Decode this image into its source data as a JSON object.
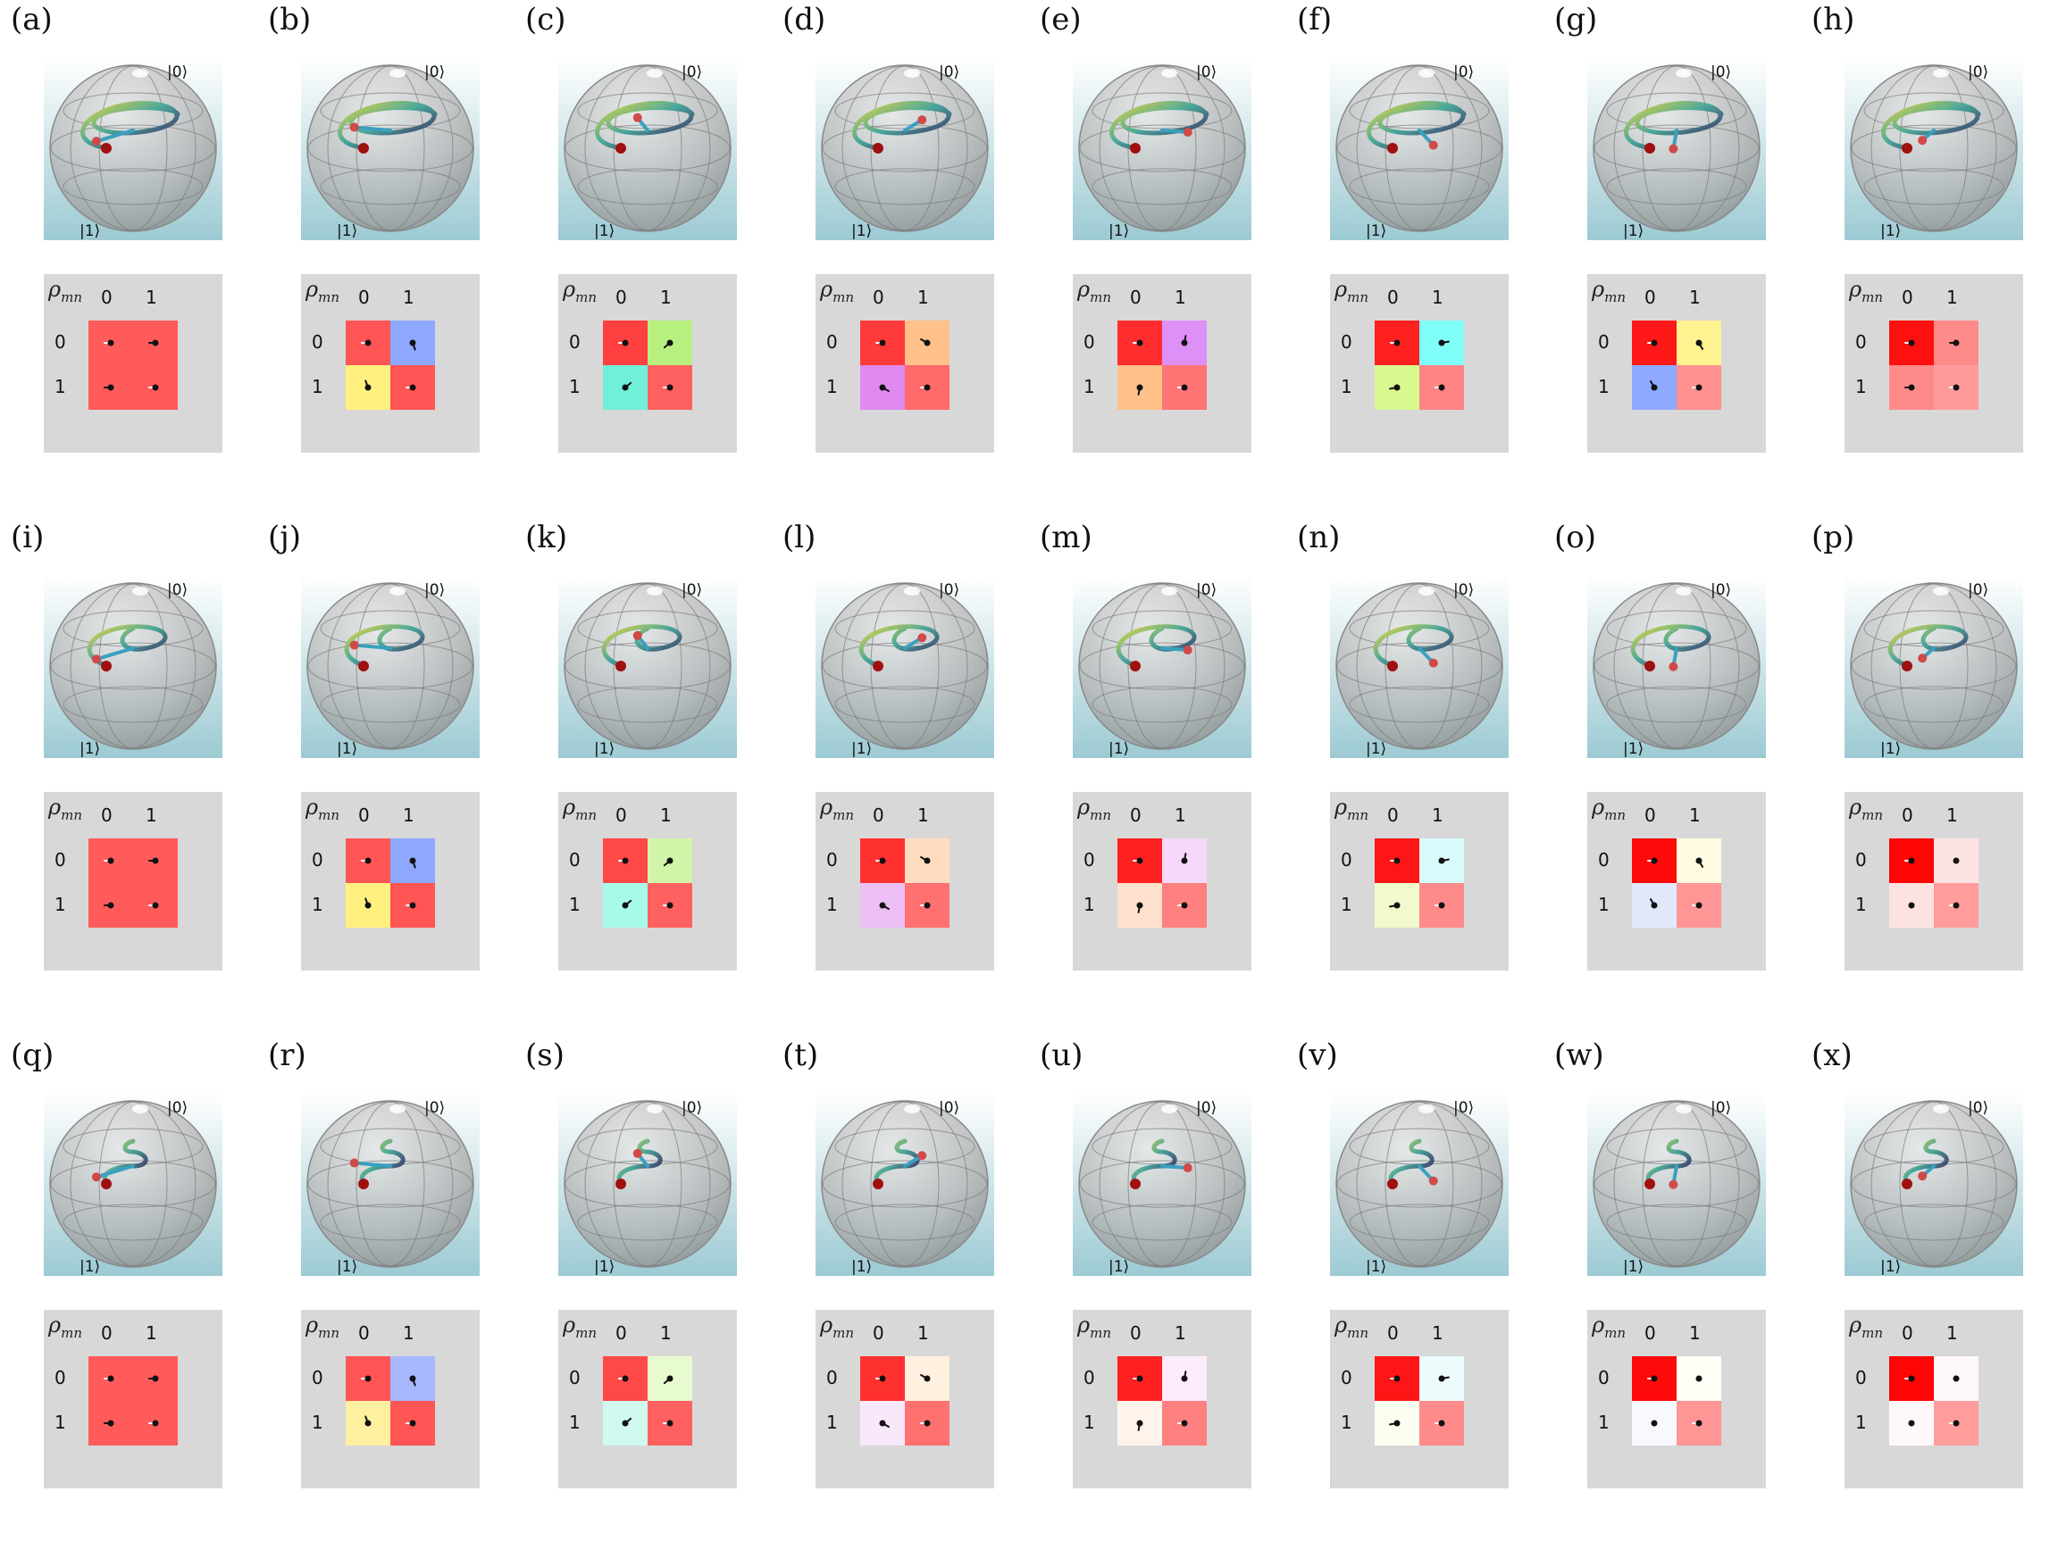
{
  "matrix_labels": {
    "rho": "ρ",
    "rho_sub": "mn",
    "col0": "0",
    "col1": "1",
    "row0": "0",
    "row1": "1"
  },
  "kets": {
    "top": "|0⟩",
    "bottom": "|1⟩"
  },
  "panels": [
    {
      "label": "(a)",
      "row": 0,
      "cells": [
        "#ff5b5b",
        "#ff5b5b",
        "#ff5b5b",
        "#ff5b5b"
      ],
      "arrow": "dash"
    },
    {
      "label": "(b)",
      "row": 0,
      "cells": [
        "#ff5555",
        "#8ea8ff",
        "#fff080",
        "#ff5555"
      ],
      "arrow": "phase"
    },
    {
      "label": "(c)",
      "row": 0,
      "cells": [
        "#ff4040",
        "#b8f080",
        "#70f0d8",
        "#ff6060"
      ],
      "arrow": "phase"
    },
    {
      "label": "(d)",
      "row": 0,
      "cells": [
        "#ff3a3a",
        "#ffc08a",
        "#e08af0",
        "#ff6a6a"
      ],
      "arrow": "phase"
    },
    {
      "label": "(e)",
      "row": 0,
      "cells": [
        "#ff2d2d",
        "#dd90f5",
        "#ffc08a",
        "#ff7575"
      ],
      "arrow": "phase"
    },
    {
      "label": "(f)",
      "row": 0,
      "cells": [
        "#ff2020",
        "#80fff8",
        "#d8f890",
        "#ff8585"
      ],
      "arrow": "phase"
    },
    {
      "label": "(g)",
      "row": 0,
      "cells": [
        "#ff1818",
        "#fff290",
        "#8eaaff",
        "#ff9090"
      ],
      "arrow": "phase"
    },
    {
      "label": "(h)",
      "row": 0,
      "cells": [
        "#ff1010",
        "#ff8a8a",
        "#ff8a8a",
        "#ff9a9a"
      ],
      "arrow": "dash"
    },
    {
      "label": "(i)",
      "row": 1,
      "cells": [
        "#ff5b5b",
        "#ff5b5b",
        "#ff5b5b",
        "#ff5b5b"
      ],
      "arrow": "dash"
    },
    {
      "label": "(j)",
      "row": 1,
      "cells": [
        "#ff5555",
        "#8ea8ff",
        "#fff080",
        "#ff5555"
      ],
      "arrow": "phase"
    },
    {
      "label": "(k)",
      "row": 1,
      "cells": [
        "#ff4848",
        "#d0f5a8",
        "#a8fae8",
        "#ff6060"
      ],
      "arrow": "phase"
    },
    {
      "label": "(l)",
      "row": 1,
      "cells": [
        "#ff3030",
        "#ffdcc0",
        "#ecc0f5",
        "#ff7070"
      ],
      "arrow": "phase"
    },
    {
      "label": "(m)",
      "row": 1,
      "cells": [
        "#ff2020",
        "#f5d8fa",
        "#ffe0cc",
        "#ff8080"
      ],
      "arrow": "phase"
    },
    {
      "label": "(n)",
      "row": 1,
      "cells": [
        "#ff1515",
        "#d8fafa",
        "#f0facc",
        "#ff8a8a"
      ],
      "arrow": "phase"
    },
    {
      "label": "(o)",
      "row": 1,
      "cells": [
        "#ff0a0a",
        "#fffae0",
        "#e0e8fa",
        "#ff9595"
      ],
      "arrow": "phase"
    },
    {
      "label": "(p)",
      "row": 1,
      "cells": [
        "#ff0505",
        "#fde2e2",
        "#fde2e2",
        "#ff9c9c"
      ],
      "arrow": "dot"
    },
    {
      "label": "(q)",
      "row": 2,
      "cells": [
        "#ff5b5b",
        "#ff5b5b",
        "#ff5b5b",
        "#ff5b5b"
      ],
      "arrow": "dash"
    },
    {
      "label": "(r)",
      "row": 2,
      "cells": [
        "#ff5555",
        "#a8b8ff",
        "#fff0a0",
        "#ff5555"
      ],
      "arrow": "phase"
    },
    {
      "label": "(s)",
      "row": 2,
      "cells": [
        "#ff4848",
        "#e8fad0",
        "#d0faf0",
        "#ff6060"
      ],
      "arrow": "phase"
    },
    {
      "label": "(t)",
      "row": 2,
      "cells": [
        "#ff3030",
        "#fff0e0",
        "#f8e8fa",
        "#ff7070"
      ],
      "arrow": "phase"
    },
    {
      "label": "(u)",
      "row": 2,
      "cells": [
        "#ff2020",
        "#fcecfc",
        "#fff4ec",
        "#ff8080"
      ],
      "arrow": "phase"
    },
    {
      "label": "(v)",
      "row": 2,
      "cells": [
        "#ff1515",
        "#ecfcfc",
        "#fafff0",
        "#ff8a8a"
      ],
      "arrow": "phase"
    },
    {
      "label": "(w)",
      "row": 2,
      "cells": [
        "#ff0a0a",
        "#fffff8",
        "#f8f8ff",
        "#ff9595"
      ],
      "arrow": "dot"
    },
    {
      "label": "(x)",
      "row": 2,
      "cells": [
        "#ff0505",
        "#fff8f8",
        "#fff8f8",
        "#ff9c9c"
      ],
      "arrow": "dot"
    }
  ]
}
